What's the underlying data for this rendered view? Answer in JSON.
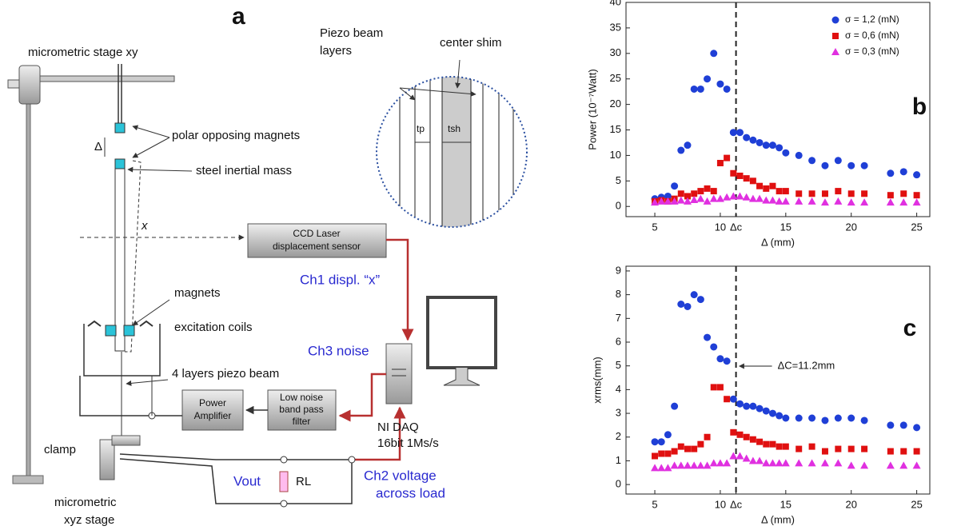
{
  "diagram": {
    "panel": "a",
    "stage_xy": "micrometric stage xy",
    "magnets_top": "polar opposing magnets",
    "gap": "Δ",
    "mass": "steel inertial mass",
    "deflection": "x",
    "sensor": [
      "CCD Laser",
      "displacement sensor"
    ],
    "ch1": "Ch1 displ. “x”",
    "magnets": "magnets",
    "coils": "excitation coils",
    "ch3": "Ch3 noise",
    "beam": "4 layers piezo beam",
    "amplifier": [
      "Power",
      "Amplifier"
    ],
    "filter": [
      "Low noise",
      "band pass",
      "filter"
    ],
    "daq": [
      "NI DAQ",
      "16bit 1Ms/s"
    ],
    "clamp": "clamp",
    "stage_xyz": [
      "micrometric",
      "xyz stage"
    ],
    "vout": "Vout",
    "load": "RL",
    "ch2": [
      "Ch2 voltage",
      "across load"
    ],
    "inset": {
      "layers": [
        "Piezo beam",
        "layers"
      ],
      "shim": "center shim",
      "tp": "tp",
      "tsh": "tsh"
    }
  },
  "chart_data": [
    {
      "type": "scatter",
      "panel": "b",
      "y_label": "Power (10⁻⁷Watt)",
      "x_label": "Δ (mm)",
      "xlim": [
        2.8,
        26
      ],
      "ylim": [
        -2,
        40
      ],
      "xticks": [
        5,
        10,
        {
          "value": 11.2,
          "label": "Δc"
        },
        15,
        20,
        25
      ],
      "yticks": [
        0,
        5,
        10,
        15,
        20,
        25,
        30,
        35,
        40
      ],
      "vline": 11.2,
      "legend": "upper right",
      "x": [
        5,
        5.5,
        6,
        6.5,
        7,
        7.5,
        8,
        8.5,
        9,
        9.5,
        10,
        10.5,
        11,
        11.5,
        12,
        12.5,
        13,
        13.5,
        14,
        14.5,
        15,
        16,
        17,
        18,
        19,
        20,
        21,
        23,
        24,
        25
      ],
      "series": [
        {
          "name": "σ = 1,2 (mN)",
          "color": "#1f3fd6",
          "marker": "circle",
          "values": [
            1.5,
            1.8,
            2,
            4,
            11,
            12,
            23,
            23,
            25,
            30,
            24,
            23,
            14.5,
            14.5,
            13.5,
            13,
            12.5,
            12,
            12,
            11.5,
            10.5,
            10,
            9,
            8,
            9,
            8,
            8,
            6.5,
            6.8,
            6.2
          ]
        },
        {
          "name": "σ = 0,6 (mN)",
          "color": "#e01010",
          "marker": "square",
          "values": [
            1,
            1.2,
            1,
            1.5,
            2.5,
            2,
            2.5,
            3,
            3.5,
            3,
            8.5,
            9.5,
            6.5,
            6,
            5.5,
            5,
            4,
            3.5,
            4,
            3,
            3,
            2.5,
            2.5,
            2.5,
            3,
            2.5,
            2.5,
            2.2,
            2.5,
            2.2
          ]
        },
        {
          "name": "σ = 0,3 (mN)",
          "color": "#e030e0",
          "marker": "triangle",
          "values": [
            0.8,
            1,
            1,
            1,
            1.2,
            1,
            1.3,
            1.5,
            1,
            1.5,
            1.5,
            1.8,
            2,
            2,
            1.8,
            1.5,
            1.5,
            1.2,
            1.2,
            1,
            1,
            1,
            1,
            0.8,
            1,
            0.8,
            0.8,
            0.8,
            0.8,
            0.8
          ]
        }
      ]
    },
    {
      "type": "scatter",
      "panel": "c",
      "y_label": "xrms(mm)",
      "x_label": "Δ (mm)",
      "xlim": [
        2.8,
        26
      ],
      "ylim": [
        -0.4,
        9.2
      ],
      "xticks": [
        5,
        10,
        {
          "value": 11.2,
          "label": "Δc"
        },
        15,
        20,
        25
      ],
      "yticks": [
        0,
        1,
        2,
        3,
        4,
        5,
        6,
        7,
        8,
        9
      ],
      "vline": 11.2,
      "annotation": "ΔC=11.2mm",
      "x": [
        5,
        5.5,
        6,
        6.5,
        7,
        7.5,
        8,
        8.5,
        9,
        9.5,
        10,
        10.5,
        11,
        11.5,
        12,
        12.5,
        13,
        13.5,
        14,
        14.5,
        15,
        16,
        17,
        18,
        19,
        20,
        21,
        23,
        24,
        25
      ],
      "series": [
        {
          "color": "#1f3fd6",
          "marker": "circle",
          "values": [
            1.8,
            1.8,
            2.1,
            3.3,
            7.6,
            7.5,
            8,
            7.8,
            6.2,
            5.8,
            5.3,
            5.2,
            3.6,
            3.4,
            3.3,
            3.3,
            3.2,
            3.1,
            3,
            2.9,
            2.8,
            2.8,
            2.8,
            2.7,
            2.8,
            2.8,
            2.7,
            2.5,
            2.5,
            2.4
          ]
        },
        {
          "color": "#e01010",
          "marker": "square",
          "values": [
            1.2,
            1.3,
            1.3,
            1.4,
            1.6,
            1.5,
            1.5,
            1.7,
            2,
            4.1,
            4.1,
            3.6,
            2.2,
            2.1,
            2,
            1.9,
            1.8,
            1.7,
            1.7,
            1.6,
            1.6,
            1.5,
            1.6,
            1.4,
            1.5,
            1.5,
            1.5,
            1.4,
            1.4,
            1.4
          ]
        },
        {
          "color": "#e030e0",
          "marker": "triangle",
          "values": [
            0.7,
            0.7,
            0.7,
            0.8,
            0.8,
            0.8,
            0.8,
            0.8,
            0.8,
            0.9,
            0.9,
            0.9,
            1.2,
            1.2,
            1.1,
            1,
            1,
            0.9,
            0.9,
            0.9,
            0.9,
            0.9,
            0.9,
            0.9,
            0.9,
            0.8,
            0.8,
            0.8,
            0.8,
            0.8
          ]
        }
      ]
    }
  ]
}
